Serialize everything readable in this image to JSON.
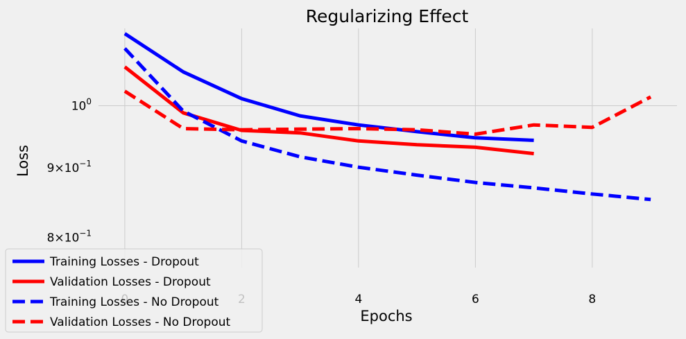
{
  "chart_data": {
    "type": "line",
    "title": "Regularizing Effect",
    "xlabel": "Epochs",
    "ylabel": "Loss",
    "yscale": "log",
    "xlim": [
      -0.45,
      9.45
    ],
    "ylim": [
      0.76,
      1.14
    ],
    "grid": true,
    "legend_position": "lower-left",
    "x_ticks": [
      {
        "value": 0,
        "label": "0"
      },
      {
        "value": 2,
        "label": "2"
      },
      {
        "value": 4,
        "label": "4"
      },
      {
        "value": 6,
        "label": "6"
      },
      {
        "value": 8,
        "label": "8"
      }
    ],
    "y_ticks": [
      {
        "value": 1.0,
        "base": "10",
        "exp": "0"
      },
      {
        "value": 0.9,
        "mult": "9",
        "base": "10",
        "exp": "−1"
      },
      {
        "value": 0.8,
        "mult": "8",
        "base": "10",
        "exp": "−1"
      }
    ],
    "series": [
      {
        "name": "Training Losses - Dropout",
        "color": "#0000ff",
        "style": "solid",
        "x": [
          0,
          1,
          2,
          3,
          4,
          5,
          6,
          7
        ],
        "values": [
          1.13,
          1.059,
          1.012,
          0.983,
          0.968,
          0.957,
          0.947,
          0.943
        ]
      },
      {
        "name": "Validation Losses - Dropout",
        "color": "#ff0000",
        "style": "solid",
        "x": [
          0,
          1,
          2,
          3,
          4,
          5,
          6,
          7
        ],
        "values": [
          1.068,
          0.988,
          0.959,
          0.955,
          0.942,
          0.936,
          0.932,
          0.922
        ]
      },
      {
        "name": "Training Losses - No Dropout",
        "color": "#0000ff",
        "style": "dashed",
        "x": [
          0,
          1,
          2,
          3,
          4,
          5,
          6,
          7,
          8,
          9
        ],
        "values": [
          1.102,
          0.991,
          0.942,
          0.917,
          0.901,
          0.889,
          0.878,
          0.87,
          0.861,
          0.853
        ]
      },
      {
        "name": "Validation Losses - No Dropout",
        "color": "#ff0000",
        "style": "dashed",
        "x": [
          0,
          1,
          2,
          3,
          4,
          5,
          6,
          7,
          8,
          9
        ],
        "values": [
          1.025,
          0.962,
          0.96,
          0.961,
          0.962,
          0.96,
          0.953,
          0.968,
          0.964,
          1.015
        ]
      }
    ]
  }
}
